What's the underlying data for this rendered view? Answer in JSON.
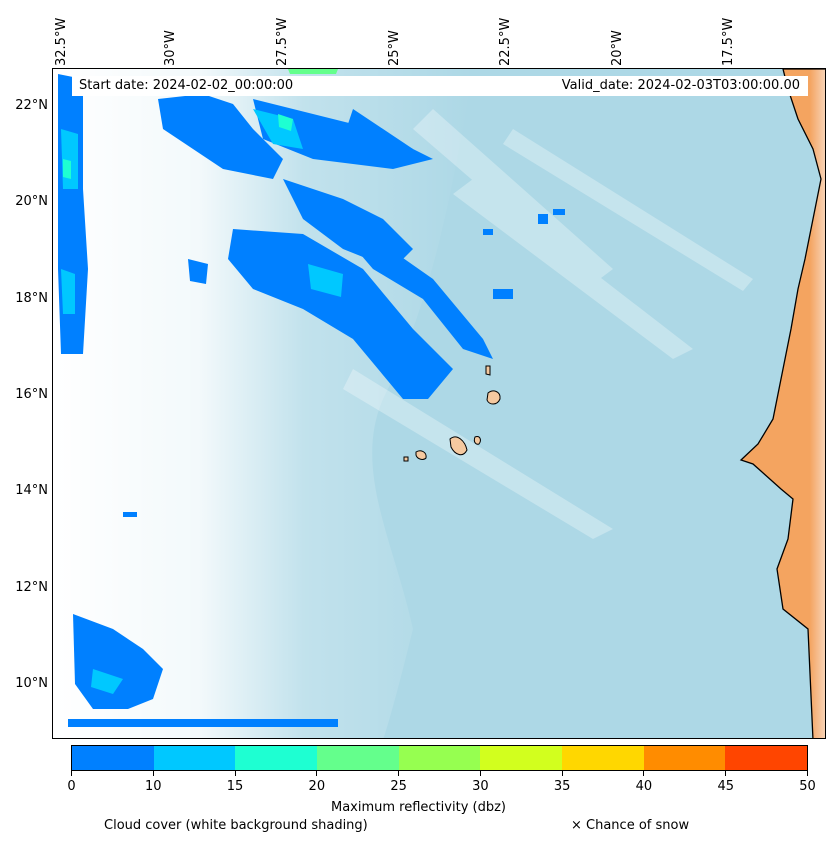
{
  "map": {
    "start_date": "Start date: 2024-02-02_00:00:00",
    "valid_date": "Valid_date: 2024-02-03T03:00:00.00",
    "lon_labels": [
      "32.5°W",
      "30°W",
      "27.5°W",
      "25°W",
      "22.5°W",
      "20°W",
      "17.5°W"
    ],
    "lat_labels": [
      "22°N",
      "20°N",
      "18°N",
      "16°N",
      "14°N",
      "12°N",
      "10°N"
    ],
    "colors": {
      "ocean": "#add8e6",
      "land": "#f4a460",
      "cloud": "#ffffff",
      "islands": "#f5c9a0",
      "coastline": "#000000"
    }
  },
  "colorbar": {
    "title": "Maximum reflectivity (dbz)",
    "ticks": [
      "0",
      "10",
      "15",
      "20",
      "25",
      "30",
      "35",
      "40",
      "45",
      "50"
    ],
    "colors": [
      "#0080ff",
      "#00c8ff",
      "#1effd2",
      "#64ff8c",
      "#96ff50",
      "#d2ff1e",
      "#ffd700",
      "#ff8c00",
      "#ff4500"
    ]
  },
  "footer": {
    "cloud_note": "Cloud cover (white background shading)",
    "snow_note": "× Chance of snow"
  }
}
